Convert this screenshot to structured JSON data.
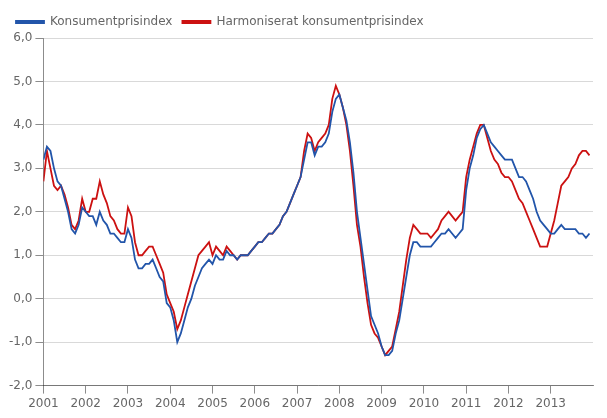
{
  "chart_data": {
    "type": "line",
    "x": [
      2001,
      2001.0833333333333,
      2001.1666666666667,
      2001.25,
      2001.3333333333333,
      2001.4166666666667,
      2001.5,
      2001.5833333333333,
      2001.6666666666667,
      2001.75,
      2001.8333333333333,
      2001.9166666666667,
      2002,
      2002.0833333333333,
      2002.1666666666667,
      2002.25,
      2002.3333333333333,
      2002.4166666666667,
      2002.5,
      2002.5833333333333,
      2002.6666666666667,
      2002.75,
      2002.8333333333333,
      2002.9166666666667,
      2003,
      2003.0833333333333,
      2003.1666666666667,
      2003.25,
      2003.3333333333333,
      2003.4166666666667,
      2003.5,
      2003.5833333333333,
      2003.6666666666667,
      2003.75,
      2003.8333333333333,
      2003.9166666666667,
      2004,
      2004.0833333333333,
      2004.1666666666667,
      2004.25,
      2004.3333333333333,
      2004.4166666666667,
      2004.5,
      2004.5833333333333,
      2004.6666666666667,
      2004.75,
      2004.8333333333333,
      2004.9166666666667,
      2005,
      2005.0833333333333,
      2005.1666666666667,
      2005.25,
      2005.3333333333333,
      2005.4166666666667,
      2005.5,
      2005.5833333333333,
      2005.6666666666667,
      2005.75,
      2005.8333333333333,
      2005.9166666666667,
      2006,
      2006.0833333333333,
      2006.1666666666667,
      2006.25,
      2006.3333333333333,
      2006.4166666666667,
      2006.5,
      2006.5833333333333,
      2006.6666666666667,
      2006.75,
      2006.8333333333333,
      2006.9166666666667,
      2007,
      2007.0833333333333,
      2007.1666666666667,
      2007.25,
      2007.3333333333333,
      2007.4166666666667,
      2007.5,
      2007.5833333333333,
      2007.6666666666667,
      2007.75,
      2007.8333333333333,
      2007.9166666666667,
      2008,
      2008.0833333333333,
      2008.1666666666667,
      2008.25,
      2008.3333333333333,
      2008.4166666666667,
      2008.5,
      2008.5833333333333,
      2008.6666666666667,
      2008.75,
      2008.8333333333333,
      2008.9166666666667,
      2009,
      2009.0833333333333,
      2009.1666666666667,
      2009.25,
      2009.3333333333333,
      2009.4166666666667,
      2009.5,
      2009.5833333333333,
      2009.6666666666667,
      2009.75,
      2009.8333333333333,
      2009.9166666666667,
      2010,
      2010.0833333333333,
      2010.1666666666667,
      2010.25,
      2010.3333333333333,
      2010.4166666666667,
      2010.5,
      2010.5833333333333,
      2010.6666666666667,
      2010.75,
      2010.8333333333333,
      2010.9166666666667,
      2011,
      2011.0833333333333,
      2011.1666666666667,
      2011.25,
      2011.3333333333333,
      2011.4166666666667,
      2011.5,
      2011.5833333333333,
      2011.6666666666667,
      2011.75,
      2011.8333333333333,
      2011.9166666666667,
      2012,
      2012.0833333333333,
      2012.1666666666667,
      2012.25,
      2012.3333333333333,
      2012.4166666666667,
      2012.5,
      2012.5833333333333,
      2012.6666666666667,
      2012.75,
      2012.8333333333333,
      2012.9166666666667,
      2013,
      2013.0833333333333,
      2013.1666666666667,
      2013.25,
      2013.3333333333333,
      2013.4166666666667,
      2013.5,
      2013.5833333333333,
      2013.6666666666667,
      2013.75,
      2013.8333333333333,
      2013.9166666666667
    ],
    "series": [
      {
        "name": "Konsumentprisindex",
        "color": "#2255aa",
        "values": [
          3.2,
          3.5,
          3.4,
          3.0,
          2.7,
          2.6,
          2.3,
          2.0,
          1.6,
          1.5,
          1.7,
          2.1,
          2.0,
          1.9,
          1.9,
          1.7,
          2.0,
          1.8,
          1.7,
          1.5,
          1.5,
          1.4,
          1.3,
          1.3,
          1.6,
          1.4,
          0.9,
          0.7,
          0.7,
          0.8,
          0.8,
          0.9,
          0.7,
          0.5,
          0.4,
          -0.1,
          -0.2,
          -0.5,
          -1.0,
          -0.8,
          -0.5,
          -0.2,
          0.0,
          0.3,
          0.5,
          0.7,
          0.8,
          0.9,
          0.8,
          1.0,
          0.9,
          0.9,
          1.1,
          1.0,
          1.0,
          0.9,
          1.0,
          1.0,
          1.0,
          1.1,
          1.2,
          1.3,
          1.3,
          1.4,
          1.5,
          1.5,
          1.6,
          1.7,
          1.9,
          2.0,
          2.2,
          2.4,
          2.6,
          2.8,
          3.2,
          3.6,
          3.6,
          3.3,
          3.5,
          3.5,
          3.6,
          3.8,
          4.3,
          4.6,
          4.7,
          4.4,
          4.1,
          3.6,
          2.9,
          2.0,
          1.4,
          0.8,
          0.2,
          -0.4,
          -0.6,
          -0.8,
          -1.1,
          -1.3,
          -1.3,
          -1.2,
          -0.8,
          -0.5,
          0.0,
          0.5,
          1.0,
          1.3,
          1.3,
          1.2,
          1.2,
          1.2,
          1.2,
          1.3,
          1.4,
          1.5,
          1.5,
          1.6,
          1.5,
          1.4,
          1.5,
          1.6,
          2.5,
          3.0,
          3.3,
          3.7,
          3.9,
          4.0,
          3.8,
          3.6,
          3.5,
          3.4,
          3.3,
          3.2,
          3.2,
          3.2,
          3.0,
          2.8,
          2.8,
          2.7,
          2.5,
          2.3,
          2.0,
          1.8,
          1.7,
          1.6,
          1.5,
          1.5,
          1.6,
          1.7,
          1.6,
          1.6,
          1.6,
          1.6,
          1.5,
          1.5,
          1.4,
          1.5
        ]
      },
      {
        "name": "Harmoniserat konsumentprisindex",
        "color": "#cc1111",
        "values": [
          2.7,
          3.4,
          3.0,
          2.6,
          2.5,
          2.6,
          2.4,
          2.1,
          1.7,
          1.6,
          1.8,
          2.3,
          2.0,
          2.0,
          2.3,
          2.3,
          2.7,
          2.4,
          2.2,
          1.9,
          1.8,
          1.6,
          1.5,
          1.5,
          2.1,
          1.9,
          1.3,
          1.0,
          1.0,
          1.1,
          1.2,
          1.2,
          1.0,
          0.8,
          0.6,
          0.1,
          -0.1,
          -0.3,
          -0.7,
          -0.5,
          -0.2,
          0.1,
          0.4,
          0.7,
          1.0,
          1.1,
          1.2,
          1.3,
          1.0,
          1.2,
          1.1,
          1.0,
          1.2,
          1.1,
          1.0,
          0.9,
          1.0,
          1.0,
          1.0,
          1.1,
          1.2,
          1.3,
          1.3,
          1.4,
          1.5,
          1.5,
          1.6,
          1.7,
          1.9,
          2.0,
          2.2,
          2.4,
          2.6,
          2.8,
          3.4,
          3.8,
          3.7,
          3.4,
          3.6,
          3.7,
          3.8,
          4.0,
          4.6,
          4.9,
          4.7,
          4.4,
          4.0,
          3.4,
          2.6,
          1.7,
          1.2,
          0.5,
          -0.1,
          -0.6,
          -0.8,
          -0.9,
          -1.1,
          -1.3,
          -1.2,
          -1.1,
          -0.7,
          -0.3,
          0.3,
          0.9,
          1.4,
          1.7,
          1.6,
          1.5,
          1.5,
          1.5,
          1.4,
          1.5,
          1.6,
          1.8,
          1.9,
          2.0,
          1.9,
          1.8,
          1.9,
          2.0,
          2.8,
          3.2,
          3.5,
          3.8,
          4.0,
          4.0,
          3.7,
          3.4,
          3.2,
          3.1,
          2.9,
          2.8,
          2.8,
          2.7,
          2.5,
          2.3,
          2.2,
          2.0,
          1.8,
          1.6,
          1.4,
          1.2,
          1.2,
          1.2,
          1.5,
          1.8,
          2.2,
          2.6,
          2.7,
          2.8,
          3.0,
          3.1,
          3.3,
          3.4,
          3.4,
          3.3
        ]
      }
    ],
    "xlim": [
      2001,
      2014
    ],
    "xticks": [
      2001,
      2002,
      2003,
      2004,
      2005,
      2006,
      2007,
      2008,
      2009,
      2010,
      2011,
      2012,
      2013
    ],
    "ylim": [
      -2.0,
      6.0
    ],
    "yticks": [
      {
        "value": -2.0,
        "label": "-2,0"
      },
      {
        "value": -1.0,
        "label": "-1,0"
      },
      {
        "value": 0.0,
        "label": "0,0"
      },
      {
        "value": 1.0,
        "label": "1,0"
      },
      {
        "value": 2.0,
        "label": "2,0"
      },
      {
        "value": 3.0,
        "label": "3,0"
      },
      {
        "value": 4.0,
        "label": "4,0"
      },
      {
        "value": 5.0,
        "label": "5,0"
      },
      {
        "value": 6.0,
        "label": "6,0"
      }
    ],
    "grid": "y",
    "legend": "upper left"
  }
}
